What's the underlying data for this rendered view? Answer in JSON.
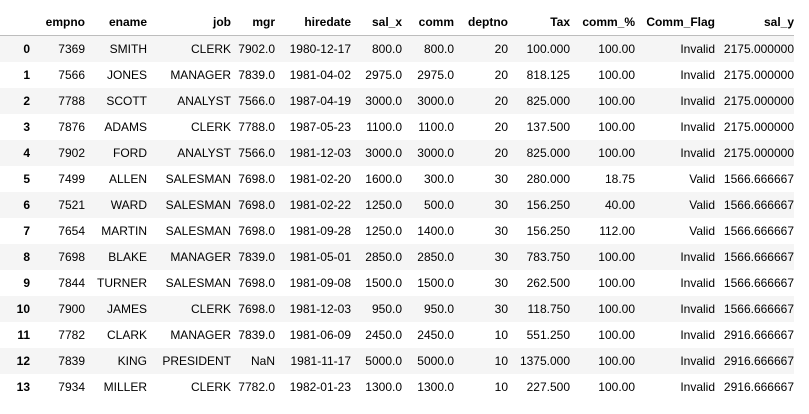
{
  "table": {
    "index_header": "",
    "columns": [
      "empno",
      "ename",
      "job",
      "mgr",
      "hiredate",
      "sal_x",
      "comm",
      "deptno",
      "Tax",
      "comm_%",
      "Comm_Flag",
      "sal_y"
    ],
    "rows": [
      {
        "index": "0",
        "cells": [
          "7369",
          "SMITH",
          "CLERK",
          "7902.0",
          "1980-12-17",
          "800.0",
          "800.0",
          "20",
          "100.000",
          "100.00",
          "Invalid",
          "2175.000000"
        ]
      },
      {
        "index": "1",
        "cells": [
          "7566",
          "JONES",
          "MANAGER",
          "7839.0",
          "1981-04-02",
          "2975.0",
          "2975.0",
          "20",
          "818.125",
          "100.00",
          "Invalid",
          "2175.000000"
        ]
      },
      {
        "index": "2",
        "cells": [
          "7788",
          "SCOTT",
          "ANALYST",
          "7566.0",
          "1987-04-19",
          "3000.0",
          "3000.0",
          "20",
          "825.000",
          "100.00",
          "Invalid",
          "2175.000000"
        ]
      },
      {
        "index": "3",
        "cells": [
          "7876",
          "ADAMS",
          "CLERK",
          "7788.0",
          "1987-05-23",
          "1100.0",
          "1100.0",
          "20",
          "137.500",
          "100.00",
          "Invalid",
          "2175.000000"
        ]
      },
      {
        "index": "4",
        "cells": [
          "7902",
          "FORD",
          "ANALYST",
          "7566.0",
          "1981-12-03",
          "3000.0",
          "3000.0",
          "20",
          "825.000",
          "100.00",
          "Invalid",
          "2175.000000"
        ]
      },
      {
        "index": "5",
        "cells": [
          "7499",
          "ALLEN",
          "SALESMAN",
          "7698.0",
          "1981-02-20",
          "1600.0",
          "300.0",
          "30",
          "280.000",
          "18.75",
          "Valid",
          "1566.666667"
        ]
      },
      {
        "index": "6",
        "cells": [
          "7521",
          "WARD",
          "SALESMAN",
          "7698.0",
          "1981-02-22",
          "1250.0",
          "500.0",
          "30",
          "156.250",
          "40.00",
          "Valid",
          "1566.666667"
        ]
      },
      {
        "index": "7",
        "cells": [
          "7654",
          "MARTIN",
          "SALESMAN",
          "7698.0",
          "1981-09-28",
          "1250.0",
          "1400.0",
          "30",
          "156.250",
          "112.00",
          "Valid",
          "1566.666667"
        ]
      },
      {
        "index": "8",
        "cells": [
          "7698",
          "BLAKE",
          "MANAGER",
          "7839.0",
          "1981-05-01",
          "2850.0",
          "2850.0",
          "30",
          "783.750",
          "100.00",
          "Invalid",
          "1566.666667"
        ]
      },
      {
        "index": "9",
        "cells": [
          "7844",
          "TURNER",
          "SALESMAN",
          "7698.0",
          "1981-09-08",
          "1500.0",
          "1500.0",
          "30",
          "262.500",
          "100.00",
          "Invalid",
          "1566.666667"
        ]
      },
      {
        "index": "10",
        "cells": [
          "7900",
          "JAMES",
          "CLERK",
          "7698.0",
          "1981-12-03",
          "950.0",
          "950.0",
          "30",
          "118.750",
          "100.00",
          "Invalid",
          "1566.666667"
        ]
      },
      {
        "index": "11",
        "cells": [
          "7782",
          "CLARK",
          "MANAGER",
          "7839.0",
          "1981-06-09",
          "2450.0",
          "2450.0",
          "10",
          "551.250",
          "100.00",
          "Invalid",
          "2916.666667"
        ]
      },
      {
        "index": "12",
        "cells": [
          "7839",
          "KING",
          "PRESIDENT",
          "NaN",
          "1981-11-17",
          "5000.0",
          "5000.0",
          "10",
          "1375.000",
          "100.00",
          "Invalid",
          "2916.666667"
        ]
      },
      {
        "index": "13",
        "cells": [
          "7934",
          "MILLER",
          "CLERK",
          "7782.0",
          "1982-01-23",
          "1300.0",
          "1300.0",
          "10",
          "227.500",
          "100.00",
          "Invalid",
          "2916.666667"
        ]
      }
    ]
  }
}
